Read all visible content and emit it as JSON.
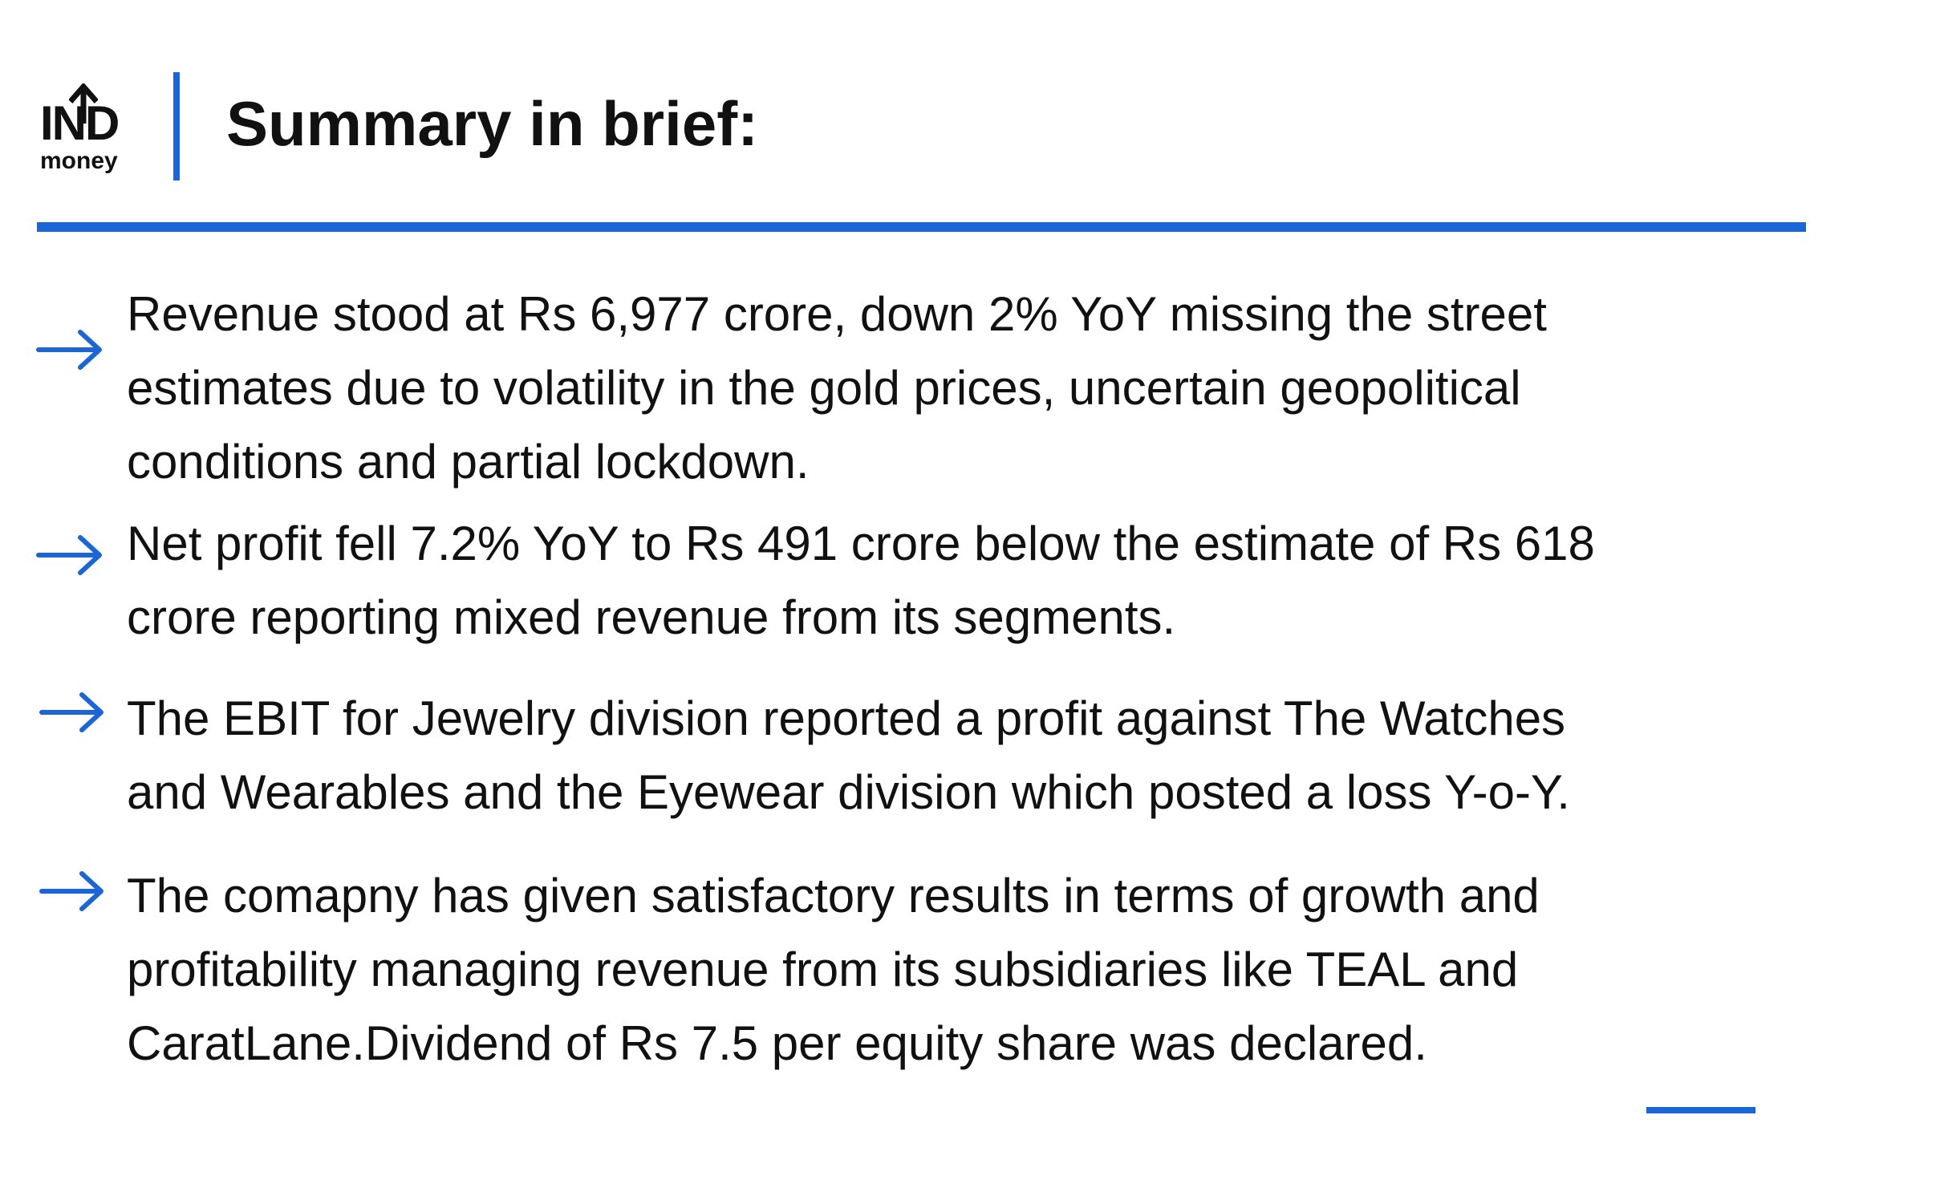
{
  "logo": {
    "top": "IND",
    "bottom": "money"
  },
  "header": {
    "title": "Summary in brief:"
  },
  "colors": {
    "accent": "#1a66d9",
    "text": "#111111",
    "background": "#ffffff"
  },
  "icons": {
    "bullet": "right-arrow-icon",
    "logo_arrow": "up-arrow-icon"
  },
  "bullets": [
    {
      "lines": [
        "Revenue stood at Rs 6,977 crore, down 2% YoY missing the street",
        "estimates due to volatility in the gold prices, uncertain geopolitical",
        "conditions and partial lockdown."
      ]
    },
    {
      "lines": [
        "Net profit fell 7.2% YoY to Rs 491 crore below the estimate of Rs 618",
        "crore reporting mixed revenue from its segments."
      ]
    },
    {
      "lines": [
        "The EBIT for Jewelry division reported a profit against The Watches",
        "and Wearables and the Eyewear division which posted a loss Y-o-Y."
      ]
    },
    {
      "lines": [
        "The comapny has given satisfactory results in terms of growth and",
        "profitability managing revenue from its subsidiaries like TEAL and",
        "CaratLane.Dividend of Rs 7.5 per equity share was declared."
      ]
    }
  ]
}
